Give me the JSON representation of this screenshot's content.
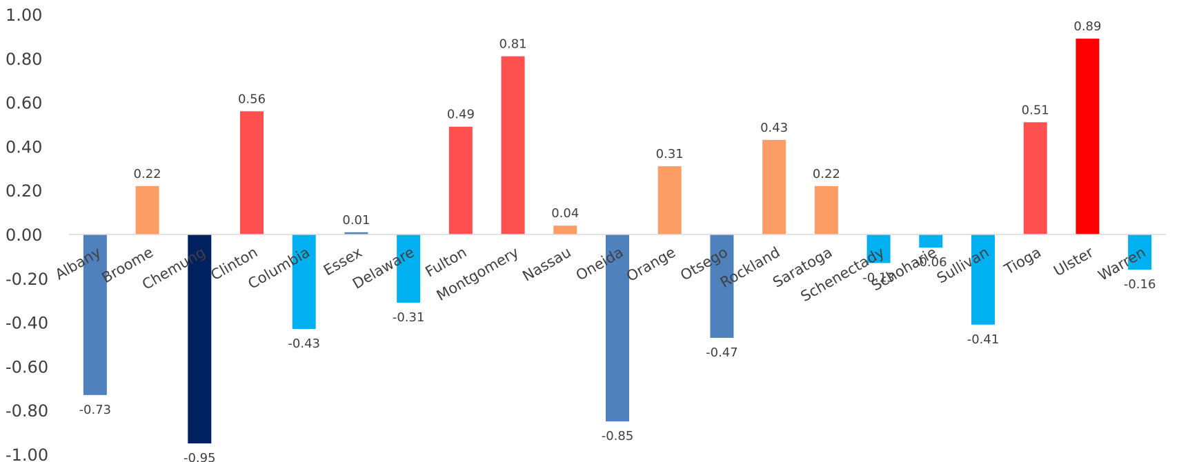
{
  "chart_data": {
    "type": "bar",
    "title": "",
    "xlabel": "",
    "ylabel": "",
    "ylim": [
      -1.0,
      1.0
    ],
    "yticks": [
      "1.00",
      "0.80",
      "0.60",
      "0.40",
      "0.20",
      "0.00",
      "-0.20",
      "-0.40",
      "-0.60",
      "-0.80",
      "-1.00"
    ],
    "grid": false,
    "legend": "none",
    "categories": [
      "Albany",
      "Broome",
      "Chemung",
      "Clinton",
      "Columbia",
      "Essex",
      "Delaware",
      "Fulton",
      "Montgomery",
      "Nassau",
      "Oneida",
      "Orange",
      "Otsego",
      "Rockland",
      "Saratoga",
      "Schenectady",
      "Schoharie",
      "Sullivan",
      "Tioga",
      "Ulster",
      "Warren"
    ],
    "values": [
      -0.73,
      0.22,
      -0.95,
      0.56,
      -0.43,
      0.01,
      -0.31,
      0.49,
      0.81,
      0.04,
      -0.85,
      0.31,
      -0.47,
      0.43,
      0.22,
      -0.13,
      -0.06,
      -0.41,
      0.51,
      0.89,
      -0.16
    ],
    "value_labels": [
      "-0.73",
      "0.22",
      "-0.95",
      "0.56",
      "-0.43",
      "0.01",
      "-0.31",
      "0.49",
      "0.81",
      "0.04",
      "-0.85",
      "0.31",
      "-0.47",
      "0.43",
      "0.22",
      "-0.13",
      "-0.06",
      "-0.41",
      "0.51",
      "0.89",
      "-0.16"
    ],
    "colors": [
      "#4f81bd",
      "#fd9d66",
      "#002060",
      "#ff5050",
      "#00b0f0",
      "#4f81bd",
      "#00b0f0",
      "#ff5050",
      "#ff5050",
      "#fd9d66",
      "#4f81bd",
      "#fd9d66",
      "#4f81bd",
      "#fd9d66",
      "#fd9d66",
      "#00b0f0",
      "#00b0f0",
      "#00b0f0",
      "#ff5050",
      "#ff0000",
      "#00b0f0"
    ],
    "axis_color": "#d9d9d9",
    "text_color": "#404040"
  }
}
